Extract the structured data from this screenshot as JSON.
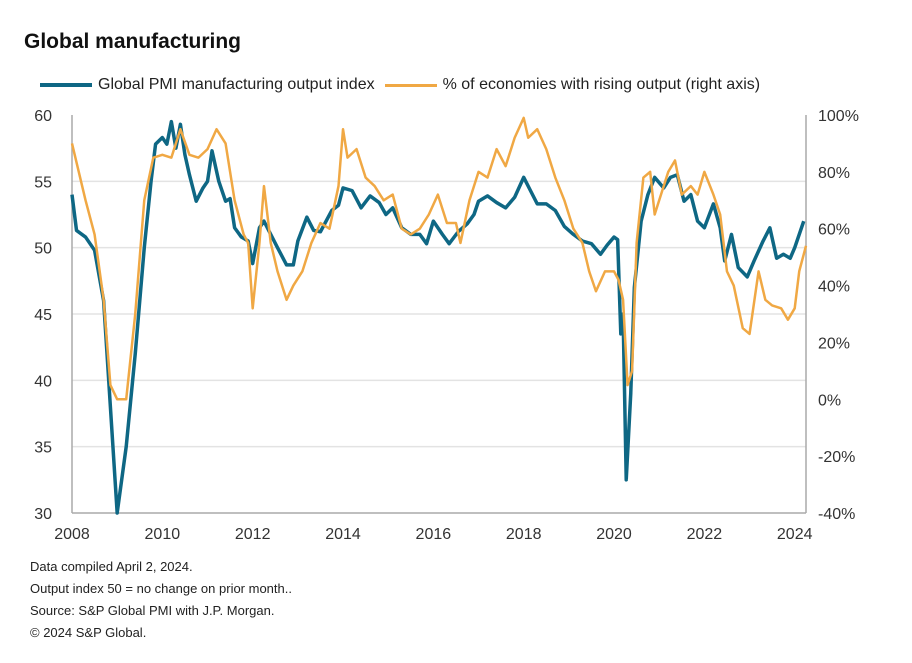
{
  "chart_data": {
    "type": "line",
    "title": "Global manufacturing",
    "xlabel": "",
    "ylabel": "",
    "xlim": [
      2008,
      2024.25
    ],
    "x_ticks": [
      "2008",
      "2010",
      "2012",
      "2014",
      "2016",
      "2018",
      "2020",
      "2022",
      "2024"
    ],
    "ylim_left": [
      30,
      60
    ],
    "y_ticks_left": [
      "30",
      "35",
      "40",
      "45",
      "50",
      "55",
      "60"
    ],
    "ylim_right": [
      -40,
      100
    ],
    "y_ticks_right": [
      "-40%",
      "-20%",
      "0%",
      "20%",
      "40%",
      "60%",
      "80%",
      "100%"
    ],
    "grid": true,
    "legend_position": "top",
    "series": [
      {
        "name": "Global PMI manufacturing output index",
        "axis": "left",
        "color": "#0e6784",
        "x": [
          2008.0,
          2008.1,
          2008.3,
          2008.5,
          2008.7,
          2008.85,
          2009.0,
          2009.2,
          2009.4,
          2009.6,
          2009.75,
          2009.85,
          2010.0,
          2010.1,
          2010.2,
          2010.3,
          2010.4,
          2010.5,
          2010.6,
          2010.75,
          2010.9,
          2011.0,
          2011.1,
          2011.25,
          2011.4,
          2011.5,
          2011.6,
          2011.75,
          2011.9,
          2012.0,
          2012.15,
          2012.25,
          2012.4,
          2012.55,
          2012.75,
          2012.9,
          2013.0,
          2013.2,
          2013.35,
          2013.5,
          2013.75,
          2013.9,
          2014.0,
          2014.2,
          2014.4,
          2014.6,
          2014.8,
          2014.95,
          2015.1,
          2015.3,
          2015.5,
          2015.7,
          2015.85,
          2016.0,
          2016.2,
          2016.35,
          2016.55,
          2016.75,
          2016.9,
          2017.0,
          2017.2,
          2017.4,
          2017.6,
          2017.8,
          2018.0,
          2018.15,
          2018.3,
          2018.5,
          2018.7,
          2018.9,
          2019.1,
          2019.3,
          2019.5,
          2019.7,
          2019.85,
          2020.0,
          2020.08,
          2020.15,
          2020.2,
          2020.27,
          2020.37,
          2020.45,
          2020.6,
          2020.75,
          2020.9,
          2021.1,
          2021.25,
          2021.4,
          2021.55,
          2021.7,
          2021.85,
          2022.0,
          2022.2,
          2022.35,
          2022.45,
          2022.6,
          2022.75,
          2022.95,
          2023.1,
          2023.3,
          2023.45,
          2023.6,
          2023.75,
          2023.9,
          2024.0,
          2024.2
        ],
        "values": [
          54,
          51.3,
          50.8,
          49.8,
          46,
          38,
          30,
          35,
          42,
          50,
          55,
          57.8,
          58.3,
          57.8,
          59.5,
          57.5,
          59.3,
          57,
          55.5,
          53.5,
          54.5,
          55,
          57.3,
          55,
          53.5,
          53.7,
          51.5,
          50.8,
          50.5,
          48.8,
          51.5,
          52,
          51,
          50,
          48.7,
          48.7,
          50.5,
          52.3,
          51.3,
          51.2,
          52.8,
          53.2,
          54.5,
          54.3,
          53,
          53.9,
          53.4,
          52.5,
          53,
          51.5,
          51,
          51,
          50.3,
          52,
          51,
          50.3,
          51.2,
          51.8,
          52.5,
          53.5,
          53.9,
          53.4,
          53,
          53.8,
          55.3,
          54.3,
          53.3,
          53.3,
          52.8,
          51.6,
          51,
          50.5,
          50.3,
          49.5,
          50.2,
          50.8,
          50.6,
          43.5,
          45,
          32.5,
          39,
          47,
          52,
          54,
          55.3,
          54.5,
          55.3,
          55.5,
          53.5,
          54,
          52,
          51.5,
          53.3,
          51.5,
          49,
          51,
          48.5,
          47.8,
          49,
          50.5,
          51.5,
          49.2,
          49.5,
          49.2,
          50,
          52
        ]
      },
      {
        "name": "% of economies with rising output (right axis)",
        "axis": "right",
        "color": "#f0a844",
        "x": [
          2008.0,
          2008.3,
          2008.5,
          2008.7,
          2008.85,
          2009.0,
          2009.2,
          2009.4,
          2009.6,
          2009.8,
          2010.0,
          2010.2,
          2010.4,
          2010.6,
          2010.8,
          2011.0,
          2011.2,
          2011.4,
          2011.6,
          2011.8,
          2011.9,
          2012.0,
          2012.15,
          2012.25,
          2012.4,
          2012.55,
          2012.75,
          2012.9,
          2013.1,
          2013.3,
          2013.5,
          2013.7,
          2013.9,
          2014.0,
          2014.1,
          2014.3,
          2014.5,
          2014.7,
          2014.9,
          2015.1,
          2015.3,
          2015.5,
          2015.7,
          2015.9,
          2016.1,
          2016.3,
          2016.5,
          2016.6,
          2016.8,
          2017.0,
          2017.2,
          2017.4,
          2017.6,
          2017.8,
          2018.0,
          2018.1,
          2018.3,
          2018.5,
          2018.7,
          2018.9,
          2019.1,
          2019.3,
          2019.45,
          2019.6,
          2019.8,
          2020.0,
          2020.1,
          2020.2,
          2020.3,
          2020.4,
          2020.5,
          2020.65,
          2020.8,
          2020.9,
          2021.0,
          2021.2,
          2021.35,
          2021.5,
          2021.7,
          2021.85,
          2022.0,
          2022.2,
          2022.35,
          2022.5,
          2022.65,
          2022.85,
          2023.0,
          2023.2,
          2023.35,
          2023.5,
          2023.7,
          2023.85,
          2024.0,
          2024.1,
          2024.25
        ],
        "values": [
          90,
          70,
          58,
          35,
          5,
          0,
          0,
          30,
          70,
          85,
          86,
          85,
          95,
          86,
          85,
          88,
          95,
          90,
          70,
          58,
          55,
          32,
          55,
          75,
          55,
          45,
          35,
          40,
          45,
          55,
          62,
          60,
          75,
          95,
          85,
          88,
          78,
          75,
          70,
          72,
          60,
          58,
          60,
          65,
          72,
          62,
          62,
          55,
          70,
          80,
          78,
          88,
          82,
          92,
          99,
          92,
          95,
          88,
          78,
          70,
          60,
          55,
          45,
          38,
          45,
          45,
          42,
          35,
          5,
          10,
          55,
          78,
          80,
          65,
          70,
          80,
          84,
          72,
          75,
          72,
          80,
          72,
          65,
          45,
          40,
          25,
          23,
          45,
          35,
          33,
          32,
          28,
          32,
          45,
          54
        ]
      }
    ]
  },
  "footer": {
    "line1": "Data compiled April 2, 2024.",
    "line2": "Output index  50 = no change on prior month..",
    "line3": "Source: S&P Global PMI with J.P. Morgan.",
    "line4": "© 2024 S&P Global."
  }
}
